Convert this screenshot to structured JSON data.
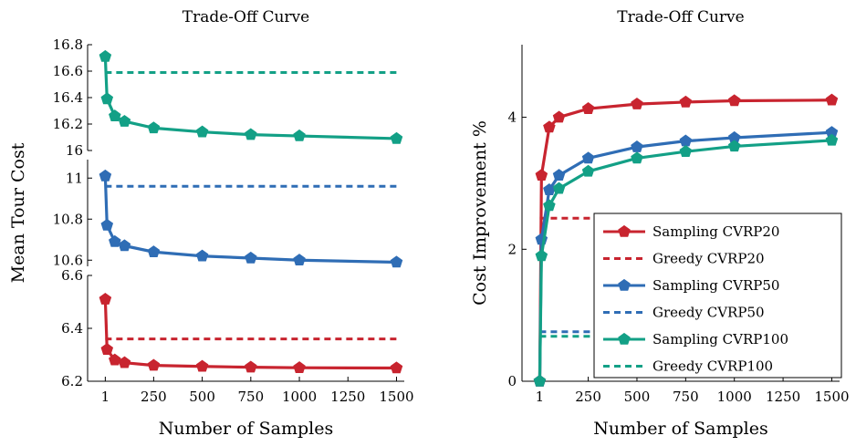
{
  "chart_data": [
    {
      "type": "line",
      "title": "Trade-Off Curve",
      "xlabel": "Number of Samples",
      "ylabel": "Mean Tour Cost",
      "x_ticks": [
        "1",
        "250",
        "500",
        "750",
        "1000",
        "1250",
        "1500"
      ],
      "x_tick_values": [
        1,
        250,
        500,
        750,
        1000,
        1250,
        1500
      ],
      "xlim": [
        -90,
        1540
      ],
      "broken_y_axis": true,
      "grid": false,
      "legend": "none",
      "panels": [
        {
          "ylim": [
            16,
            16.8
          ],
          "y_ticks": [
            "16",
            "16.2",
            "16.4",
            "16.6",
            "16.8"
          ],
          "y_tick_values": [
            16,
            16.2,
            16.4,
            16.6,
            16.8
          ],
          "color": "#13a086",
          "series": [
            {
              "style": "solid-marker",
              "x": [
                1,
                10,
                50,
                100,
                250,
                500,
                750,
                1000,
                1500
              ],
              "values": [
                16.71,
                16.39,
                16.26,
                16.22,
                16.17,
                16.14,
                16.12,
                16.11,
                16.09
              ]
            },
            {
              "style": "dashed",
              "x": [
                1,
                1500
              ],
              "values": [
                16.59,
                16.59
              ]
            }
          ]
        },
        {
          "ylim": [
            10.57,
            11.09
          ],
          "y_ticks": [
            "10.6",
            "10.8",
            "11"
          ],
          "y_tick_values": [
            10.6,
            10.8,
            11
          ],
          "color": "#2f6db5",
          "series": [
            {
              "style": "solid-marker",
              "x": [
                1,
                10,
                50,
                100,
                250,
                500,
                750,
                1000,
                1500
              ],
              "values": [
                11.01,
                10.77,
                10.69,
                10.67,
                10.64,
                10.62,
                10.61,
                10.6,
                10.59
              ]
            },
            {
              "style": "dashed",
              "x": [
                1,
                1500
              ],
              "values": [
                10.96,
                10.96
              ]
            }
          ]
        },
        {
          "ylim": [
            6.2,
            6.6
          ],
          "y_ticks": [
            "6.2",
            "6.4",
            "6.6"
          ],
          "y_tick_values": [
            6.2,
            6.4,
            6.6
          ],
          "color": "#c8242f",
          "series": [
            {
              "style": "solid-marker",
              "x": [
                1,
                10,
                50,
                100,
                250,
                500,
                750,
                1000,
                1500
              ],
              "values": [
                6.51,
                6.32,
                6.28,
                6.27,
                6.26,
                6.256,
                6.253,
                6.251,
                6.25
              ]
            },
            {
              "style": "dashed",
              "x": [
                1,
                1500
              ],
              "values": [
                6.36,
                6.36
              ]
            }
          ]
        }
      ]
    },
    {
      "type": "line",
      "title": "Trade-Off Curve",
      "xlabel": "Number of Samples",
      "ylabel": "Cost Improvement %",
      "x_ticks": [
        "1",
        "250",
        "500",
        "750",
        "1000",
        "1250",
        "1500"
      ],
      "x_tick_values": [
        1,
        250,
        500,
        750,
        1000,
        1250,
        1500
      ],
      "xlim": [
        -90,
        1540
      ],
      "ylim": [
        0,
        5.1
      ],
      "y_ticks": [
        "0",
        "2",
        "4"
      ],
      "y_tick_values": [
        0,
        2,
        4
      ],
      "grid": false,
      "legend_position": "bottom-right",
      "series": [
        {
          "name": "Sampling CVRP20",
          "color": "#c8242f",
          "style": "solid-marker",
          "x": [
            1,
            10,
            50,
            100,
            250,
            500,
            750,
            1000,
            1500
          ],
          "values": [
            0,
            3.12,
            3.85,
            4.0,
            4.13,
            4.2,
            4.23,
            4.25,
            4.26
          ]
        },
        {
          "name": "Greedy CVRP20",
          "color": "#c8242f",
          "style": "dashed",
          "x": [
            1,
            1500
          ],
          "values": [
            2.47,
            2.47
          ]
        },
        {
          "name": "Sampling CVRP50",
          "color": "#2f6db5",
          "style": "solid-marker",
          "x": [
            1,
            10,
            50,
            100,
            250,
            500,
            750,
            1000,
            1500
          ],
          "values": [
            0,
            2.15,
            2.9,
            3.12,
            3.38,
            3.55,
            3.64,
            3.69,
            3.77
          ]
        },
        {
          "name": "Greedy CVRP50",
          "color": "#2f6db5",
          "style": "dashed",
          "x": [
            1,
            1500
          ],
          "values": [
            0.75,
            0.75
          ]
        },
        {
          "name": "Sampling CVRP100",
          "color": "#13a086",
          "style": "solid-marker",
          "x": [
            1,
            10,
            50,
            100,
            250,
            500,
            750,
            1000,
            1500
          ],
          "values": [
            0,
            1.9,
            2.66,
            2.92,
            3.18,
            3.38,
            3.48,
            3.56,
            3.65
          ]
        },
        {
          "name": "Greedy CVRP100",
          "color": "#13a086",
          "style": "dashed",
          "x": [
            1,
            1500
          ],
          "values": [
            0.68,
            0.68
          ]
        }
      ]
    }
  ]
}
